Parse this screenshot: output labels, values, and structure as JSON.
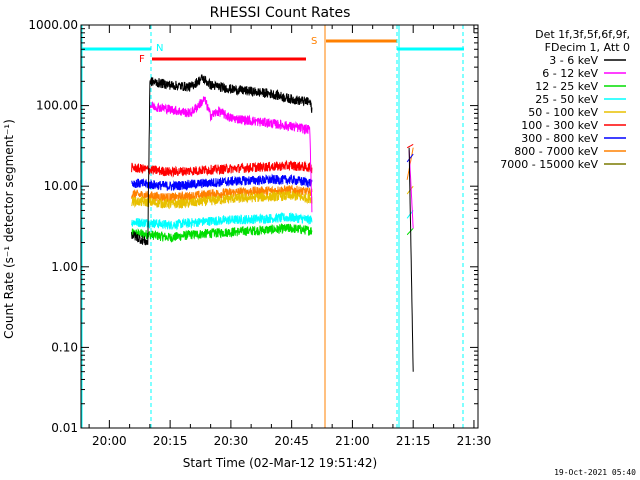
{
  "chart_data": {
    "type": "line",
    "title": "RHESSI Count Rates",
    "xlabel": "Start Time (02-Mar-12 19:51:42)",
    "ylabel": "Count Rate (s⁻¹ detector segment⁻¹)",
    "yscale": "log",
    "ylim": [
      0.01,
      1000
    ],
    "yticks": [
      "0.01",
      "0.10",
      "1.00",
      "10.00",
      "100.00",
      "1000.00"
    ],
    "xlim_minutes": [
      -7,
      91
    ],
    "xticks": [
      {
        "label": "20:00",
        "t": 0
      },
      {
        "label": "20:15",
        "t": 15
      },
      {
        "label": "20:30",
        "t": 30
      },
      {
        "label": "20:45",
        "t": 45
      },
      {
        "label": "21:00",
        "t": 60
      },
      {
        "label": "21:15",
        "t": 75
      },
      {
        "label": "21:30",
        "t": 90
      }
    ],
    "legend": {
      "header_line1": "Det 1f,3f,5f,6f,9f,",
      "header_line2": "FDecim 1, Att 0",
      "placement": "outside-right",
      "entries": [
        {
          "label": "3 - 6 keV",
          "color": "#000000"
        },
        {
          "label": "6 - 12 keV",
          "color": "#ff00ff"
        },
        {
          "label": "12 - 25 keV",
          "color": "#00dd00"
        },
        {
          "label": "25 - 50 keV",
          "color": "#00ffff"
        },
        {
          "label": "50 - 100 keV",
          "color": "#e8c000"
        },
        {
          "label": "100 - 300 keV",
          "color": "#ff0000"
        },
        {
          "label": "300 - 800 keV",
          "color": "#0000ff"
        },
        {
          "label": "800 - 7000 keV",
          "color": "#ff8000"
        },
        {
          "label": "7000 - 15000 keV",
          "color": "#7a7a00"
        }
      ]
    },
    "flags": [
      {
        "label": "N",
        "color": "#00ffff"
      },
      {
        "label": "F",
        "color": "#ff0000"
      },
      {
        "label": "S",
        "color": "#ff8000"
      }
    ],
    "series": [
      {
        "name": "3 - 6 keV",
        "color": "#000000",
        "segments": [
          {
            "t": [
              5.5,
              9.5,
              10,
              15,
              20,
              23,
              25,
              30,
              35,
              40,
              45,
              49.5,
              50
            ],
            "y": [
              2.5,
              2.0,
              200,
              180,
              170,
              220,
              180,
              160,
              150,
              140,
              120,
              110,
              90
            ]
          },
          {
            "t": [
              74,
              75
            ],
            "y": [
              30,
              0.05
            ]
          }
        ]
      },
      {
        "name": "6 - 12 keV",
        "color": "#ff00ff",
        "segments": [
          {
            "t": [
              10,
              15,
              20,
              23.5,
              25,
              27,
              30,
              35,
              40,
              45,
              49.5,
              50
            ],
            "y": [
              100,
              90,
              80,
              120,
              75,
              85,
              70,
              65,
              60,
              55,
              50,
              5
            ]
          },
          {
            "t": [
              74,
              75
            ],
            "y": [
              28,
              3
            ]
          }
        ]
      },
      {
        "name": "12 - 25 keV",
        "color": "#00dd00",
        "segments": [
          {
            "t": [
              5.5,
              10,
              15,
              20,
              25,
              30,
              35,
              40,
              45,
              50
            ],
            "y": [
              2.6,
              2.5,
              2.3,
              2.5,
              2.6,
              2.7,
              2.8,
              2.9,
              3.0,
              2.8
            ]
          },
          {
            "t": [
              73.5,
              75
            ],
            "y": [
              2.5,
              3
            ]
          }
        ]
      },
      {
        "name": "25 - 50 keV",
        "color": "#00ffff",
        "segments": [
          {
            "t": [
              5.5,
              10,
              15,
              20,
              25,
              30,
              35,
              40,
              45,
              50
            ],
            "y": [
              3.6,
              3.5,
              3.3,
              3.5,
              3.7,
              3.8,
              3.9,
              4.0,
              4.1,
              3.8
            ]
          },
          {
            "t": [
              73.5,
              75
            ],
            "y": [
              4,
              5
            ]
          }
        ]
      },
      {
        "name": "50 - 100 keV",
        "color": "#e8c000",
        "segments": [
          {
            "t": [
              5.5,
              10,
              15,
              20,
              25,
              30,
              35,
              40,
              45,
              50
            ],
            "y": [
              6.5,
              6.3,
              6.0,
              6.2,
              6.6,
              7.0,
              7.2,
              7.4,
              7.6,
              7.0
            ]
          },
          {
            "t": [
              73.5,
              75
            ],
            "y": [
              8,
              10
            ]
          }
        ]
      },
      {
        "name": "100 - 300 keV",
        "color": "#ff0000",
        "segments": [
          {
            "t": [
              5.5,
              10,
              15,
              20,
              25,
              30,
              35,
              40,
              45,
              50
            ],
            "y": [
              17,
              16,
              15,
              15.5,
              16,
              16.5,
              17,
              17.5,
              18,
              17
            ]
          },
          {
            "t": [
              73.5,
              75
            ],
            "y": [
              30,
              33
            ]
          }
        ]
      },
      {
        "name": "300 - 800 keV",
        "color": "#0000ff",
        "segments": [
          {
            "t": [
              5.5,
              10,
              15,
              20,
              25,
              30,
              35,
              40,
              45,
              50
            ],
            "y": [
              11,
              10.5,
              10,
              10.5,
              11,
              11.5,
              11.8,
              12,
              12,
              11
            ]
          },
          {
            "t": [
              73.5,
              75
            ],
            "y": [
              20,
              25
            ]
          }
        ]
      },
      {
        "name": "800 - 7000 keV",
        "color": "#ff8000",
        "segments": [
          {
            "t": [
              5.5,
              10,
              15,
              20,
              25,
              30,
              35,
              40,
              45,
              50
            ],
            "y": [
              8,
              7.6,
              7.2,
              7.5,
              8,
              8.3,
              8.6,
              8.8,
              9,
              8.3
            ]
          },
          {
            "t": [
              73.5,
              75
            ],
            "y": [
              12,
              30
            ]
          }
        ]
      }
    ]
  },
  "footer_date": "19-Oct-2021 05:40"
}
